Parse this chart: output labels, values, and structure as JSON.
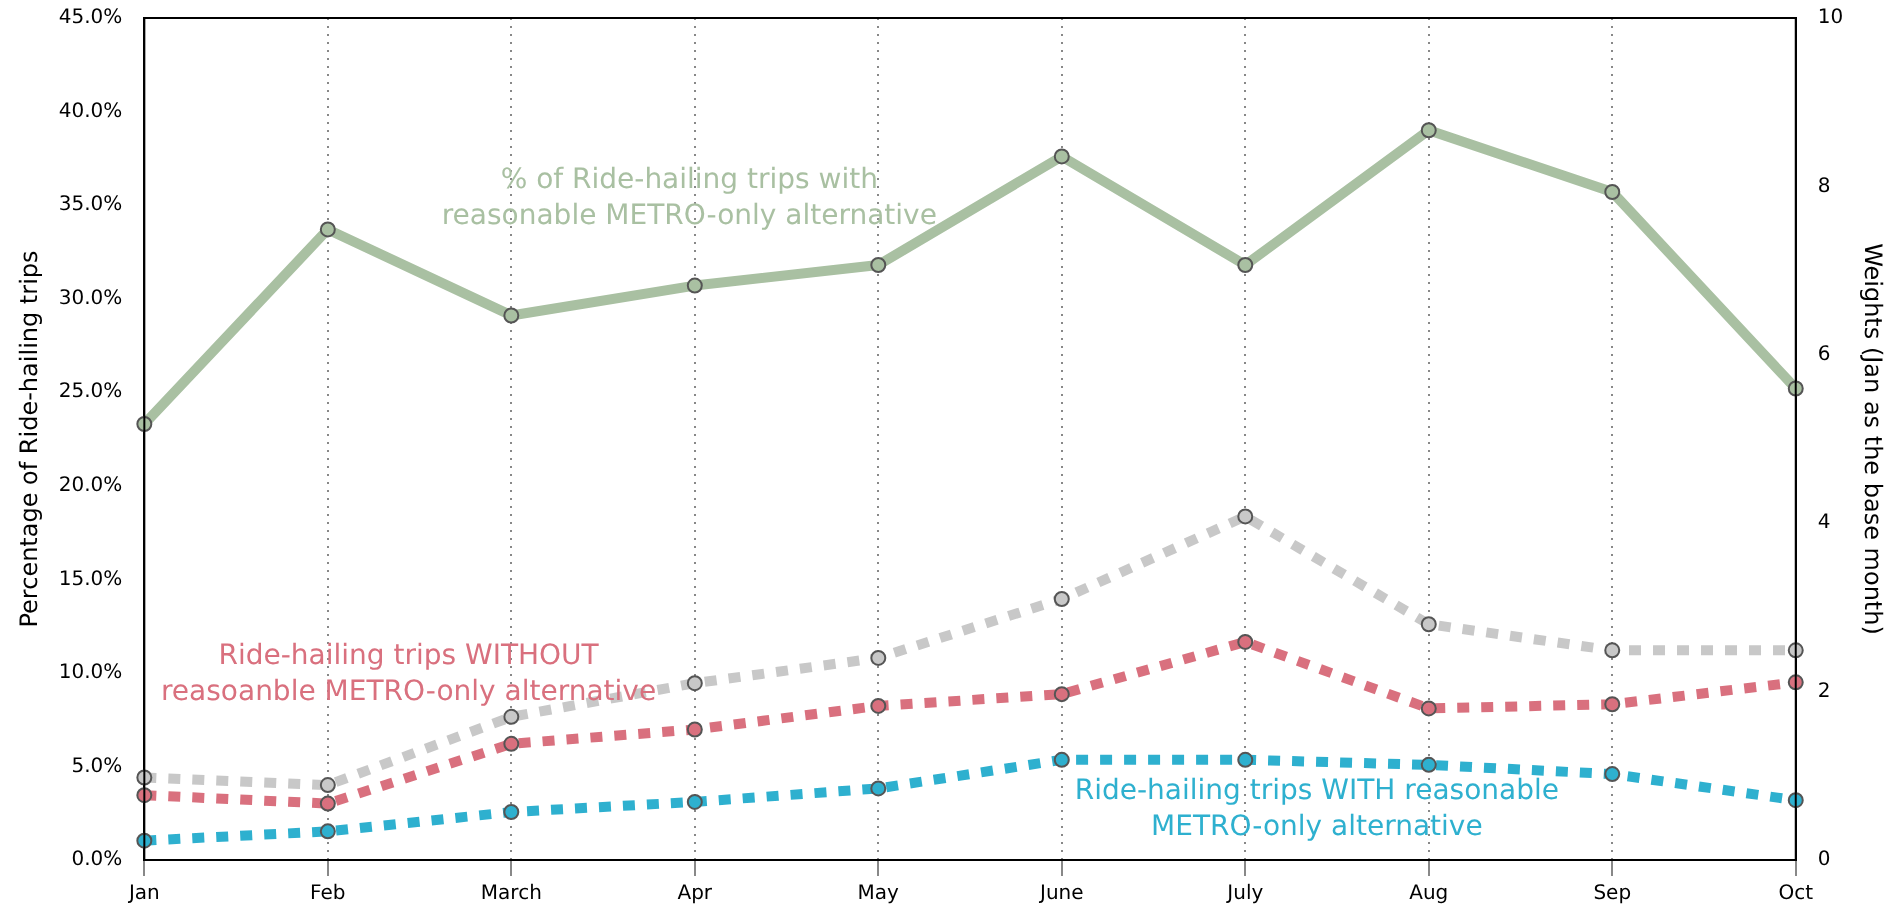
{
  "chart_data": {
    "type": "line",
    "ylabel": "Percentage of Ride-hailing trips",
    "y2label": "Weights (Jan as the base month)",
    "categories": [
      "Jan",
      "Feb",
      "March",
      "Apr",
      "May",
      "June",
      "July",
      "Aug",
      "Sep",
      "Oct"
    ],
    "series": [
      {
        "name": "% of Ride-hailing trips with reasonable METRO-only alternative",
        "color": "#a9c0a2",
        "line_style": "solid",
        "values": [
          23.3,
          33.7,
          29.1,
          30.7,
          31.8,
          37.6,
          31.8,
          39.0,
          35.7,
          25.2
        ]
      },
      {
        "color": "#c8c8c8",
        "axis": "y2",
        "line_style": "dashed",
        "values": [
          0.98,
          0.89,
          1.7,
          2.1,
          2.4,
          3.1,
          4.08,
          2.8,
          2.49,
          2.49
        ]
      },
      {
        "name": "Ride-hailing trips WITHOUT reasoanble METRO-only alternative",
        "color": "#d9707e",
        "axis": "y2",
        "line_style": "dashed",
        "values": [
          0.77,
          0.67,
          1.38,
          1.55,
          1.83,
          1.97,
          2.59,
          1.8,
          1.85,
          2.11
        ]
      },
      {
        "name": "Ride-hailing trips WITH reasonable METRO-only alternative",
        "color": "#2eb0cf",
        "axis": "y2",
        "line_style": "dashed",
        "values": [
          0.23,
          0.34,
          0.57,
          0.69,
          0.85,
          1.19,
          1.19,
          1.13,
          1.02,
          0.71
        ]
      }
    ],
    "ylim": [
      0,
      45
    ],
    "yticks": [
      {
        "value": 0,
        "label": "0.0%"
      },
      {
        "value": 5,
        "label": "5.0%"
      },
      {
        "value": 10,
        "label": "10.0%"
      },
      {
        "value": 15,
        "label": "15.0%"
      },
      {
        "value": 20,
        "label": "20.0%"
      },
      {
        "value": 25,
        "label": "25.0%"
      },
      {
        "value": 30,
        "label": "30.0%"
      },
      {
        "value": 35,
        "label": "35.0%"
      },
      {
        "value": 40,
        "label": "40.0%"
      },
      {
        "value": 45,
        "label": "45.0%"
      }
    ],
    "y2lim": [
      0,
      10
    ],
    "y2ticks": [
      0,
      2,
      4,
      6,
      8,
      10
    ],
    "grid": "x",
    "legend": false,
    "marker": "circle"
  }
}
